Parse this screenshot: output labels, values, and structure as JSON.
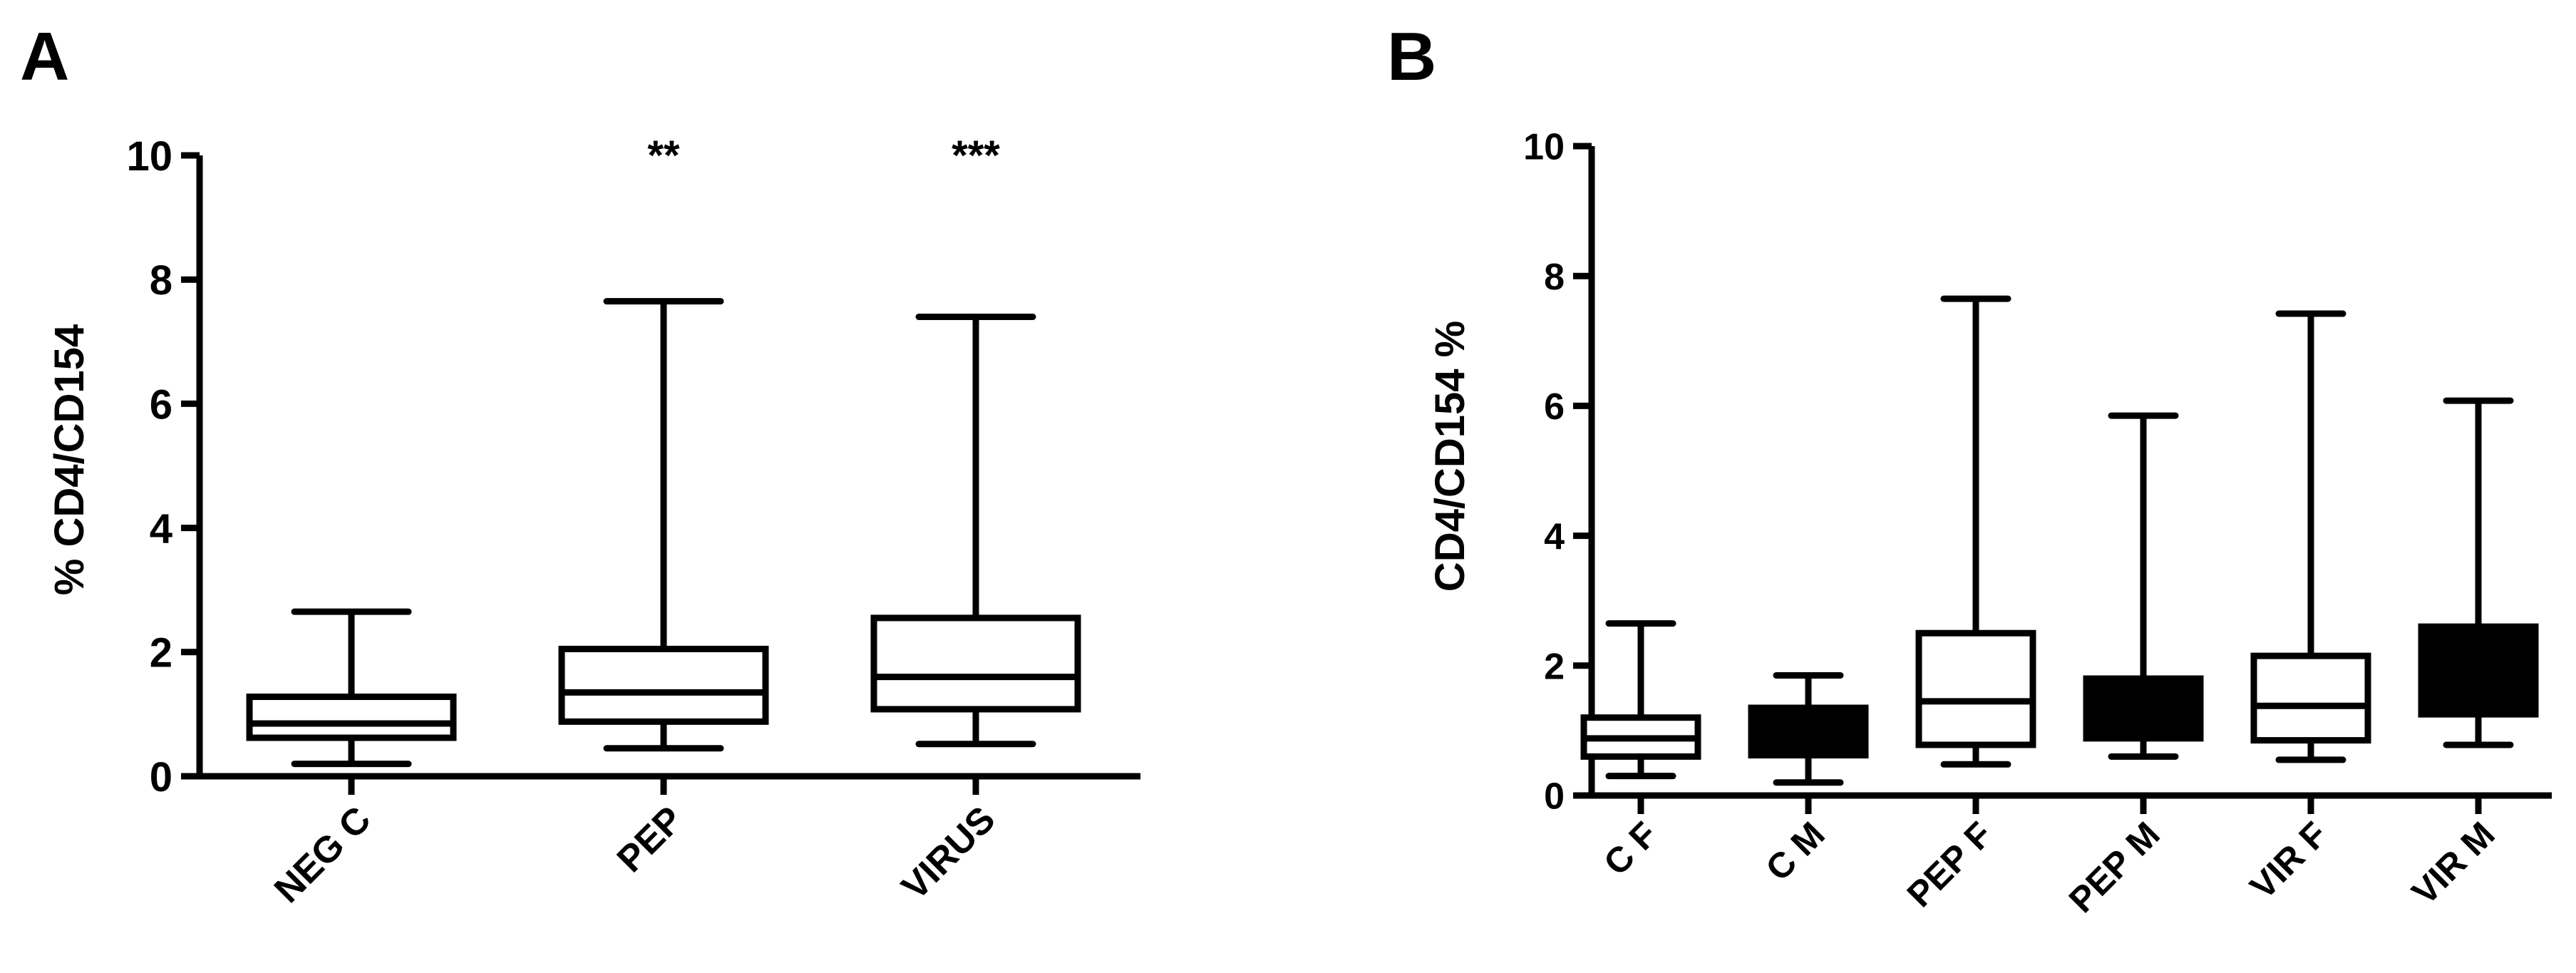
{
  "panels": {
    "a": {
      "label": "A"
    },
    "b": {
      "label": "B"
    }
  },
  "colors": {
    "ink": "#000000",
    "background": "#ffffff",
    "filled_box": "#000000",
    "open_box": "#ffffff"
  },
  "chart_data": [
    {
      "type": "box",
      "panel": "A",
      "ylabel": "% CD4/CD154",
      "ylim": [
        0,
        10
      ],
      "yticks": [
        0,
        2,
        4,
        6,
        8,
        10
      ],
      "categories": [
        "NEG C",
        "PEP",
        "VIRUS"
      ],
      "boxes": [
        {
          "label": "NEG C",
          "min": 0.2,
          "q1": 0.62,
          "median": 0.85,
          "q3": 1.28,
          "max": 2.65,
          "fill": "open",
          "annotation": ""
        },
        {
          "label": "PEP",
          "min": 0.45,
          "q1": 0.88,
          "median": 1.35,
          "q3": 2.05,
          "max": 7.65,
          "fill": "open",
          "annotation": "**"
        },
        {
          "label": "VIRUS",
          "min": 0.52,
          "q1": 1.08,
          "median": 1.6,
          "q3": 2.55,
          "max": 7.4,
          "fill": "open",
          "annotation": "***"
        }
      ]
    },
    {
      "type": "box",
      "panel": "B",
      "ylabel": "CD4/CD154 %",
      "ylim": [
        0,
        10
      ],
      "yticks": [
        0,
        2,
        4,
        6,
        8,
        10
      ],
      "categories": [
        "C F",
        "C M",
        "PEP F",
        "PEP M",
        "VIR F",
        "VIR M"
      ],
      "boxes": [
        {
          "label": "C F",
          "min": 0.3,
          "q1": 0.6,
          "median": 0.88,
          "q3": 1.2,
          "max": 2.65,
          "fill": "open"
        },
        {
          "label": "C M",
          "min": 0.2,
          "q1": 0.62,
          "median": 0.95,
          "q3": 1.35,
          "max": 1.85,
          "fill": "filled"
        },
        {
          "label": "PEP F",
          "min": 0.48,
          "q1": 0.78,
          "median": 1.45,
          "q3": 2.5,
          "max": 7.65,
          "fill": "open"
        },
        {
          "label": "PEP M",
          "min": 0.6,
          "q1": 0.88,
          "median": 1.35,
          "q3": 1.8,
          "max": 5.85,
          "fill": "filled"
        },
        {
          "label": "VIR F",
          "min": 0.55,
          "q1": 0.85,
          "median": 1.38,
          "q3": 2.15,
          "max": 7.42,
          "fill": "open"
        },
        {
          "label": "VIR M",
          "min": 0.78,
          "q1": 1.25,
          "median": 1.9,
          "q3": 2.6,
          "max": 6.08,
          "fill": "filled"
        }
      ]
    }
  ]
}
